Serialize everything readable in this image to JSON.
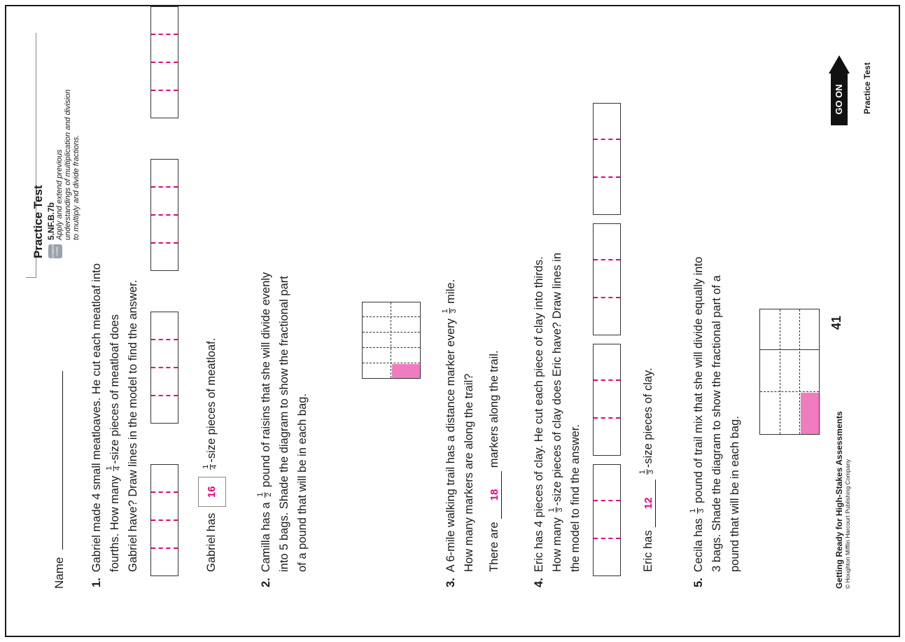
{
  "header": {
    "name_label": "Name",
    "title": "Practice Test",
    "standard_code": "5.NF.B.7b",
    "standard_desc_1": "Apply and extend previous",
    "standard_desc_2": "understandings of multiplication and division",
    "standard_desc_3": "to multiply and divide fractions.",
    "badge_text": "COMMON CORE"
  },
  "q1": {
    "num": "1.",
    "l1": "Gabriel made 4 small meatloaves. He cut each meatloaf into",
    "l2": "fourths. How many",
    "l2b": "-size pieces of meatloaf does",
    "l3": "Gabriel have? Draw lines in the model to find the answer.",
    "frac_n": "1",
    "frac_d": "4",
    "answer_pre": "Gabriel has",
    "answer": "16",
    "answer_post": "-size pieces of meatloaf."
  },
  "q2": {
    "num": "2.",
    "l1a": "Camilla has a",
    "l1b": "pound of raisins that she will divide evenly",
    "l2": "into 5 bags. Shade the diagram to show the fractional part",
    "l3": "of a pound that will be in each bag.",
    "frac_n": "1",
    "frac_d": "2"
  },
  "q3": {
    "num": "3.",
    "l1a": "A 6-mile walking trail has a distance marker every",
    "l1b": "mile.",
    "l2": "How many markers are along the trail?",
    "frac_n": "1",
    "frac_d": "3",
    "answer_pre": "There are",
    "answer": "18",
    "answer_post": "markers along the trail."
  },
  "q4": {
    "num": "4.",
    "l1": "Eric has 4 pieces of clay. He cut each piece of clay into thirds.",
    "l2a": "How many",
    "l2b": "-size pieces of clay does Eric have? Draw lines in",
    "l3": "the model to find the answer.",
    "frac_n": "1",
    "frac_d": "3",
    "answer_pre": "Eric has",
    "answer": "12",
    "answer_post": "-size pieces of clay."
  },
  "q5": {
    "num": "5.",
    "l1a": "Cecila has",
    "l1b": "pound of trail mix that she will divide equally into",
    "l2": "3 bags. Shade the diagram to show the fractional part of a",
    "l3": "pound that will be in each bag.",
    "frac_n": "1",
    "frac_d": "3"
  },
  "footer": {
    "book": "Getting Ready for High-Stakes Assessments",
    "copyright": "© Houghton Mifflin Harcourt Publishing Company",
    "page_number": "41",
    "go_on": "GO ON",
    "right_label": "Practice Test"
  },
  "colors": {
    "accent": "#e6007e",
    "shade": "#f07cc0",
    "ink": "#1a1a1a"
  }
}
